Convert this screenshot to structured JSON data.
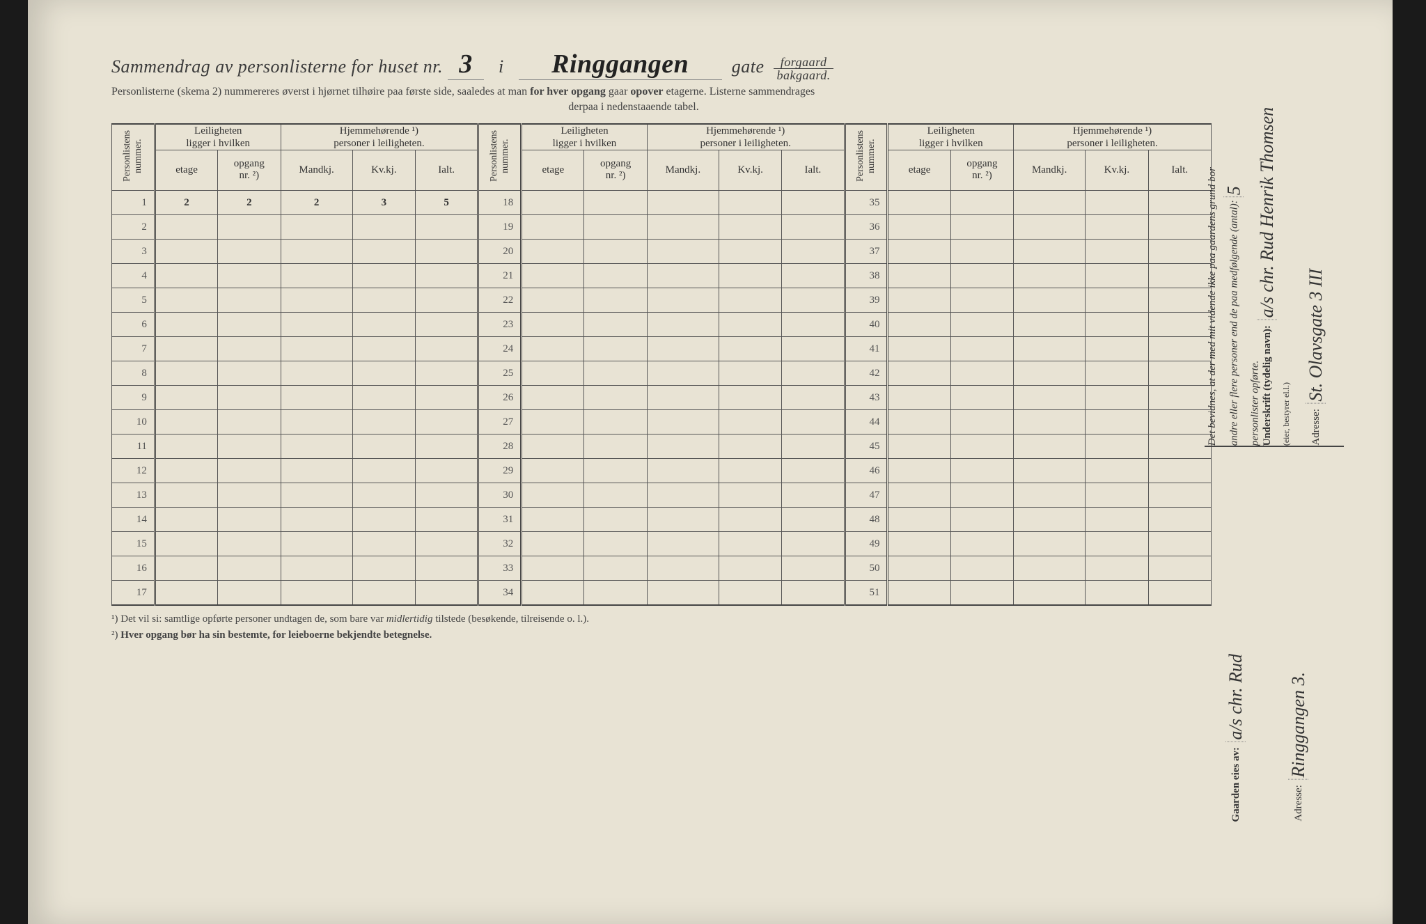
{
  "header": {
    "title_prefix": "Sammendrag av personlisterne for huset nr.",
    "house_nr": "3",
    "middle_i": "i",
    "street_name": "Ringgangen",
    "gate_label": "gate",
    "frac_top": "forgaard",
    "frac_bot": "bakgaard.",
    "sub1_a": "Personlisterne (skema 2) nummereres øverst i hjørnet tilhøire paa første side, saaledes at man ",
    "sub1_b": "for hver opgang",
    "sub1_c": " gaar ",
    "sub1_d": "opover",
    "sub1_e": " etagerne.  Listerne sammendrages",
    "sub2": "derpaa i nedenstaaende tabel."
  },
  "columns": {
    "personlistens": "Personlistens\nnummer.",
    "leiligheten_group": "Leiligheten\nligger i hvilken",
    "hjemme_group": "Hjemmehørende ¹)\npersoner i leiligheten.",
    "etage": "etage",
    "opgang": "opgang\nnr. ²)",
    "mandkj": "Mandkj.",
    "kvkj": "Kv.kj.",
    "ialt": "Ialt."
  },
  "row_numbers": {
    "set1": [
      "1",
      "2",
      "3",
      "4",
      "5",
      "6",
      "7",
      "8",
      "9",
      "10",
      "11",
      "12",
      "13",
      "14",
      "15",
      "16",
      "17"
    ],
    "set2": [
      "18",
      "19",
      "20",
      "21",
      "22",
      "23",
      "24",
      "25",
      "26",
      "27",
      "28",
      "29",
      "30",
      "31",
      "32",
      "33",
      "34"
    ],
    "set3": [
      "35",
      "36",
      "37",
      "38",
      "39",
      "40",
      "41",
      "42",
      "43",
      "44",
      "45",
      "46",
      "47",
      "48",
      "49",
      "50",
      "51"
    ]
  },
  "row1_values": {
    "etage": "2",
    "opgang": "2",
    "mandkj": "2",
    "kvkj": "3",
    "ialt": "5"
  },
  "footnotes": {
    "f1_a": "¹) Det vil si: samtlige opførte personer undtagen de, som bare var ",
    "f1_b": "midlertidig",
    "f1_c": " tilstede (besøkende, tilreisende o. l.).",
    "f2_a": "²) ",
    "f2_b": "Hver opgang bør ha sin bestemte, for leieboerne bekjendte betegnelse."
  },
  "sidebar": {
    "bevidnes": "Det bevidnes, at der med mit vidende ikke paa gaardens grund bor\nandre eller flere personer end de paa medfølgende (antal):",
    "antal_val": "5",
    "personlister": "personlister opførte.",
    "underskrift_label": "Underskrift (tydelig navn):",
    "underskrift_val": "a/s chr. Rud  Henrik Thomsen",
    "eier_small": "(eier, bestyrer el.l.)",
    "adresse_label": "Adresse:",
    "adresse_val": "St. Olavsgate 3 III",
    "gaarden_label": "Gaarden eies av:",
    "gaarden_val": "a/s chr. Rud",
    "adresse2_label": "Adresse:",
    "adresse2_val": "Ringgangen 3."
  },
  "style": {
    "page_bg": "#e8e3d4",
    "border_color": "#555",
    "text_color": "#333",
    "hand_color": "#1a1a1a"
  }
}
